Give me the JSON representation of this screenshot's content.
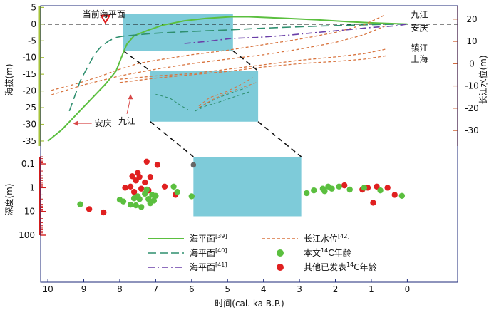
{
  "chart_data": {
    "type": "line",
    "colors": {
      "green": "#5bbf3f",
      "dark_green": "#2f8f6f",
      "purple": "#6a3fa8",
      "orange": "#d8743f",
      "red": "#e02020",
      "cyan": "#7ecbd9",
      "frame": "#1e2a7a",
      "left_axis": "#a6c33a",
      "right_axis": "#cc5a2a",
      "depth_axis": "#d21d1d",
      "label_arrow": "#d84848"
    },
    "x_axis": {
      "label": "时间(cal. ka B.P.)",
      "range": [
        10.2,
        -1.4
      ],
      "ticks": [
        10,
        9,
        8,
        7,
        6,
        5,
        4,
        3,
        2,
        1,
        0
      ],
      "tick_labels": [
        "10",
        "9",
        "8",
        "7",
        "6",
        "5",
        "4",
        "3",
        "2",
        "1",
        "0"
      ]
    },
    "y_left_axis": {
      "label": "海拔(m)",
      "range": [
        -36.5,
        5.5
      ],
      "ticks": [
        5,
        0,
        -5,
        -10,
        -15,
        -20,
        -25,
        -30,
        -35
      ],
      "tick_labels": [
        "5",
        "0",
        "-5",
        "-10",
        "-15",
        "-20",
        "-25",
        "-30",
        "-35"
      ]
    },
    "y_right_axis": {
      "label": "长江水位(m)",
      "range": [
        -37,
        26
      ],
      "ticks": [
        20,
        10,
        0,
        -10,
        -20,
        -30
      ],
      "tick_labels": [
        "20",
        "10",
        "0",
        "-10",
        "-20",
        "-30"
      ]
    },
    "depth_axis": {
      "label": "深度(m)",
      "log_range": [
        0.05,
        100
      ],
      "ticks": [
        0.1,
        1,
        10,
        100
      ],
      "tick_labels": [
        "0.1",
        "1",
        "10",
        "100"
      ]
    },
    "annotations": {
      "current_sea_level": "当前海平面",
      "current_sea_level_x": 8.4
    },
    "sea_level_series": [
      {
        "name": "海平面[39]",
        "style": "solid",
        "x": [
          10,
          9.6,
          9.2,
          8.8,
          8.4,
          8.1,
          7.9,
          7.8,
          7.6,
          7.2,
          6.8,
          6.2,
          5.6,
          4.9,
          4.4,
          3.5,
          2.5,
          1.6,
          0.8,
          0
        ],
        "y": [
          -35,
          -31.5,
          -27,
          -22.5,
          -18,
          -14,
          -8.5,
          -6,
          -3.5,
          -1.8,
          -0.3,
          1,
          1.7,
          2.2,
          2.2,
          1.8,
          1.3,
          0.7,
          0.3,
          0
        ]
      },
      {
        "name": "海平面[40]",
        "style": "longdash",
        "x": [
          9.4,
          9.1,
          8.7,
          8.5,
          8.3,
          8.1,
          7.9,
          7.6,
          7.2,
          6.8,
          6.2,
          5.6,
          4.9,
          4.2,
          3.5,
          2.5,
          1.5,
          0.8,
          0
        ],
        "y": [
          -26,
          -17,
          -9,
          -6.5,
          -5,
          -4,
          -3.6,
          -3.3,
          -2.9,
          -2.6,
          -2.3,
          -2,
          -1.7,
          -1.3,
          -1,
          -0.6,
          -0.3,
          -0.1,
          0
        ]
      },
      {
        "name": "海平面[41]",
        "style": "dashdot",
        "x": [
          6.2,
          5.6,
          4.9,
          4.2,
          3.5,
          2.5,
          1.7,
          1.0,
          0.3,
          0
        ],
        "y": [
          -5.8,
          -5.2,
          -4.3,
          -4,
          -3.5,
          -2.5,
          -1.7,
          -1,
          -0.5,
          0
        ]
      }
    ],
    "yangtze_series": [
      {
        "name": "九江",
        "x": [
          9.9,
          9.2,
          8.6,
          8.0,
          7.5,
          7.0,
          6.0,
          5.0,
          4.0,
          3.0,
          2.0,
          1.2,
          0.6
        ],
        "y": [
          -12,
          -9,
          -6,
          -2.5,
          0,
          1.5,
          4,
          6,
          8.5,
          11,
          14,
          17.5,
          22
        ]
      },
      {
        "name": "安庆",
        "x": [
          9.9,
          9.0,
          8.0,
          7.0,
          6.0,
          5.0,
          4.0,
          3.0,
          2.0,
          1.2,
          0.6
        ],
        "y": [
          -14,
          -9.5,
          -5.5,
          -2.5,
          0,
          2,
          4,
          6.5,
          9.5,
          13,
          17
        ]
      },
      {
        "name": "镇江",
        "x": [
          8.0,
          7.0,
          6.0,
          5.0,
          4.0,
          3.0,
          2.0,
          1.2,
          0.6
        ],
        "y": [
          -7,
          -5.5,
          -4.5,
          -2.5,
          -0.5,
          1.5,
          3,
          4.5,
          6.5
        ]
      },
      {
        "name": "上海",
        "x": [
          8.0,
          7.0,
          6.0,
          5.0,
          4.0,
          3.0,
          2.0,
          1.2,
          0.6
        ],
        "y": [
          -8.5,
          -6.5,
          -5,
          -3.5,
          -1.5,
          0,
          1,
          2,
          3.5
        ]
      }
    ],
    "series_labels": [
      {
        "text": "九江",
        "x": -0.1,
        "y": 22
      },
      {
        "text": "安庆",
        "x": -0.1,
        "y": 16
      },
      {
        "text": "镇江",
        "x": -0.1,
        "y": 7
      },
      {
        "text": "上海",
        "x": -0.1,
        "y": 2
      }
    ],
    "left_labels": [
      {
        "text": "安庆",
        "x": 8.7,
        "y": -29.7,
        "arrow_to_x": 9.3,
        "arrow_to_y": -29.7
      },
      {
        "text": "九江",
        "x": 7.8,
        "y": -29,
        "arrow_to_x": 7.7,
        "arrow_to_y": -21
      }
    ],
    "highlight_boxes": [
      {
        "name": "box-main",
        "x0": 7.9,
        "x1": 4.85,
        "y0": 3,
        "y1": -8
      },
      {
        "name": "box-zoom-1",
        "x0": 7.15,
        "x1": 4.15,
        "y0": -14,
        "y1": -29.2
      },
      {
        "name": "box-zoom-2",
        "x0": 5.95,
        "x1": 2.95,
        "logy0": 0.05,
        "logy1": 16
      }
    ],
    "connectors": [
      {
        "from_x": 7.9,
        "from_y": -8,
        "to_x": 7.15,
        "to_y": -14
      },
      {
        "from_x": 4.85,
        "from_y": -8,
        "to_x": 4.15,
        "to_y": -14
      },
      {
        "from_x": 7.15,
        "from_y": -29.2,
        "to_logx": 5.95,
        "to_logy": 0.05
      },
      {
        "from_x": 4.15,
        "from_y": -29.2,
        "to_logx": 2.95,
        "to_logy": 0.05
      }
    ],
    "zoom_series": [
      {
        "name": "zoom-green",
        "x": [
          7.0,
          6.6,
          6.3,
          6.1
        ],
        "y": [
          -21,
          -22.2,
          -24.4,
          -25.6
        ]
      },
      {
        "name": "zoom-orange",
        "series": [
          {
            "x": [
              5.9,
              5.6,
              5.2,
              4.8,
              4.4
            ],
            "y": [
              -26,
              -24.5,
              -23.2,
              -21.7,
              -20.3
            ]
          },
          {
            "x": [
              5.9,
              5.6,
              5.2,
              4.8,
              4.4
            ],
            "y": [
              -26,
              -23.8,
              -21.8,
              -20.2,
              -18.8
            ]
          },
          {
            "x": [
              5.8,
              5.4,
              5.0,
              4.6,
              4.2
            ],
            "y": [
              -25,
              -22.5,
              -20.5,
              -19,
              -17.5
            ]
          },
          {
            "x": [
              5.8,
              5.5,
              5.1,
              4.7,
              4.3
            ],
            "y": [
              -24.5,
              -22,
              -20.5,
              -18.5,
              -16
            ]
          }
        ]
      }
    ],
    "scatter": {
      "this_study": {
        "name": "本文14C年龄",
        "points": [
          [
            9.1,
            5.0
          ],
          [
            8.0,
            3.2
          ],
          [
            7.9,
            3.8
          ],
          [
            7.7,
            5.2
          ],
          [
            7.6,
            2.8
          ],
          [
            7.55,
            5.5
          ],
          [
            7.5,
            2.3
          ],
          [
            7.45,
            3.0
          ],
          [
            7.4,
            6.5
          ],
          [
            7.3,
            1.8
          ],
          [
            7.25,
            1.2
          ],
          [
            7.2,
            3.0
          ],
          [
            7.15,
            4.5
          ],
          [
            7.1,
            2.0
          ],
          [
            7.05,
            3.5
          ],
          [
            7.0,
            2.2
          ],
          [
            6.5,
            0.9
          ],
          [
            6.4,
            1.5
          ],
          [
            6.0,
            2.3
          ],
          [
            2.8,
            1.7
          ],
          [
            2.6,
            1.3
          ],
          [
            2.35,
            1.1
          ],
          [
            2.3,
            1.4
          ],
          [
            2.2,
            0.9
          ],
          [
            2.1,
            1.1
          ],
          [
            1.9,
            0.9
          ],
          [
            1.6,
            1.2
          ],
          [
            1.2,
            1.0
          ],
          [
            0.75,
            1.3
          ],
          [
            0.15,
            2.2
          ]
        ]
      },
      "published": {
        "name": "其他已发表14C年龄",
        "points": [
          [
            8.85,
            8.0
          ],
          [
            8.45,
            11.0
          ],
          [
            7.85,
            1.0
          ],
          [
            7.7,
            0.9
          ],
          [
            7.65,
            0.33
          ],
          [
            7.6,
            1.5
          ],
          [
            7.55,
            0.5
          ],
          [
            7.5,
            0.24
          ],
          [
            7.45,
            0.35
          ],
          [
            7.4,
            1.1
          ],
          [
            7.3,
            0.6
          ],
          [
            7.25,
            0.08
          ],
          [
            7.2,
            1.3
          ],
          [
            7.15,
            0.35
          ],
          [
            6.95,
            0.11
          ],
          [
            6.75,
            0.9
          ],
          [
            6.45,
            2.0
          ],
          [
            1.75,
            0.8
          ],
          [
            1.25,
            1.2
          ],
          [
            1.1,
            1.0
          ],
          [
            0.85,
            0.9
          ],
          [
            0.55,
            1.0
          ],
          [
            0.35,
            2.0
          ],
          [
            0.95,
            4.3
          ]
        ]
      },
      "highlight_point": {
        "x": 5.95,
        "y": 0.11
      }
    },
    "legend": {
      "entries": [
        {
          "label": "海平面",
          "ref": "[39]",
          "style": "solid",
          "color_key": "green"
        },
        {
          "label": "长江水位",
          "ref": "[42]",
          "style": "short-dash",
          "color_key": "orange"
        },
        {
          "label": "海平面",
          "ref": "[40]",
          "style": "longdash",
          "color_key": "dark_green"
        },
        {
          "label": "本文",
          "label2": "C年龄",
          "sup": "14",
          "style": "dot",
          "color_key": "green"
        },
        {
          "label": "海平面",
          "ref": "[41]",
          "style": "dashdot",
          "color_key": "purple"
        },
        {
          "label": "其他已发表",
          "label2": "C年龄",
          "sup": "14",
          "style": "dot",
          "color_key": "red"
        }
      ]
    }
  }
}
